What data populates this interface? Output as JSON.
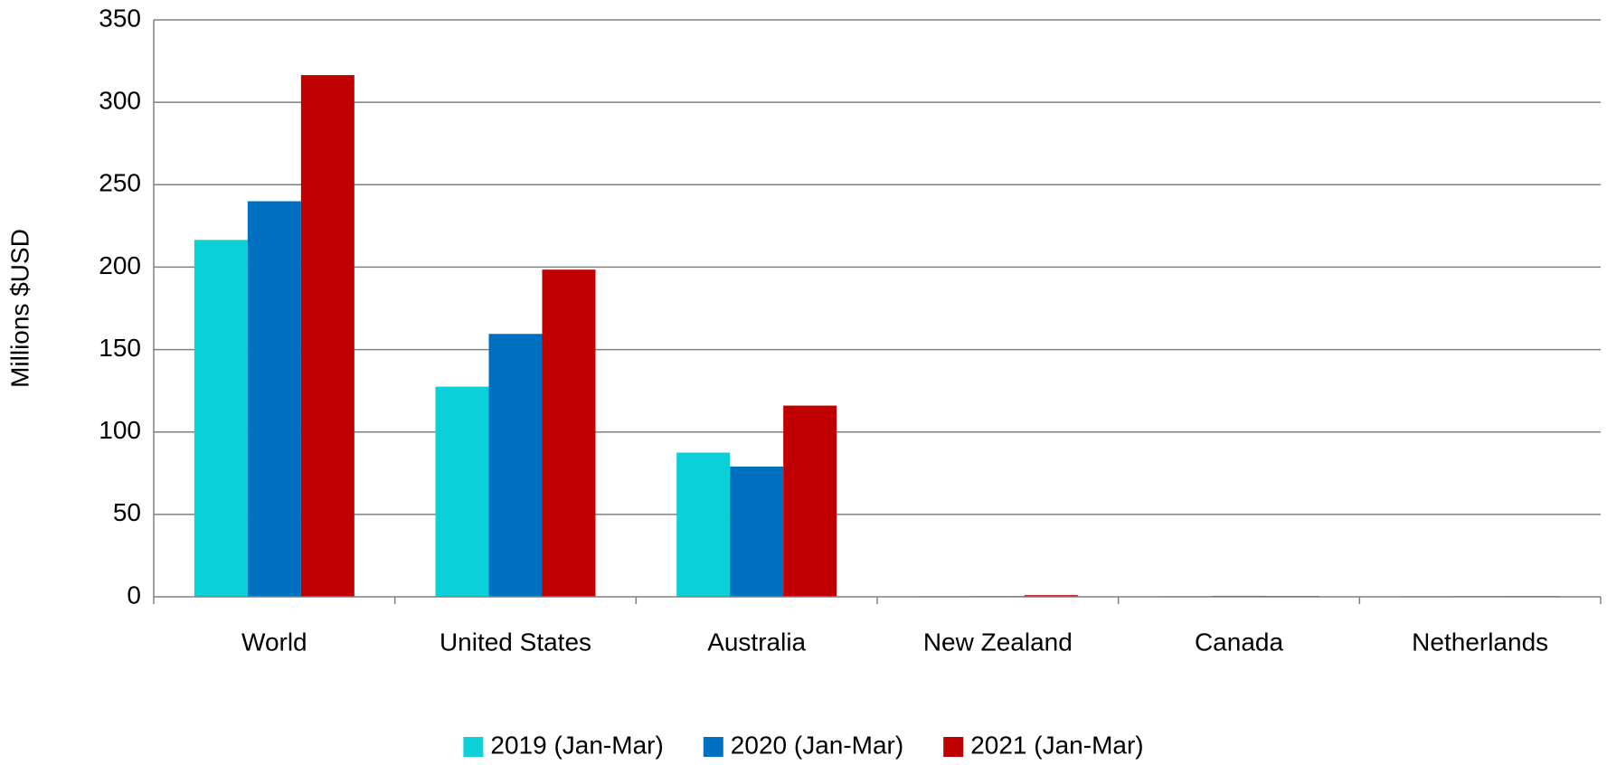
{
  "chart_data": {
    "type": "bar",
    "title": "",
    "xlabel": "",
    "ylabel": "Millions $USD",
    "ylim": [
      0,
      350
    ],
    "yticks": [
      0,
      50,
      100,
      150,
      200,
      250,
      300,
      350
    ],
    "grid": true,
    "legend_position": "bottom",
    "categories": [
      "World",
      "United States",
      "Australia",
      "New Zealand",
      "Canada",
      "Netherlands"
    ],
    "series": [
      {
        "name": "2019 (Jan-Mar)",
        "color": "#0cd0d8",
        "values": [
          216.5,
          127.5,
          87.5,
          0.3,
          0.3,
          0.1
        ]
      },
      {
        "name": "2020 (Jan-Mar)",
        "color": "#0070c0",
        "values": [
          240,
          159.5,
          79,
          0.2,
          0.6,
          0.1
        ]
      },
      {
        "name": "2021 (Jan-Mar)",
        "color": "#c00000",
        "values": [
          316.5,
          198.5,
          116,
          1.0,
          0.5,
          0.1
        ]
      }
    ]
  }
}
